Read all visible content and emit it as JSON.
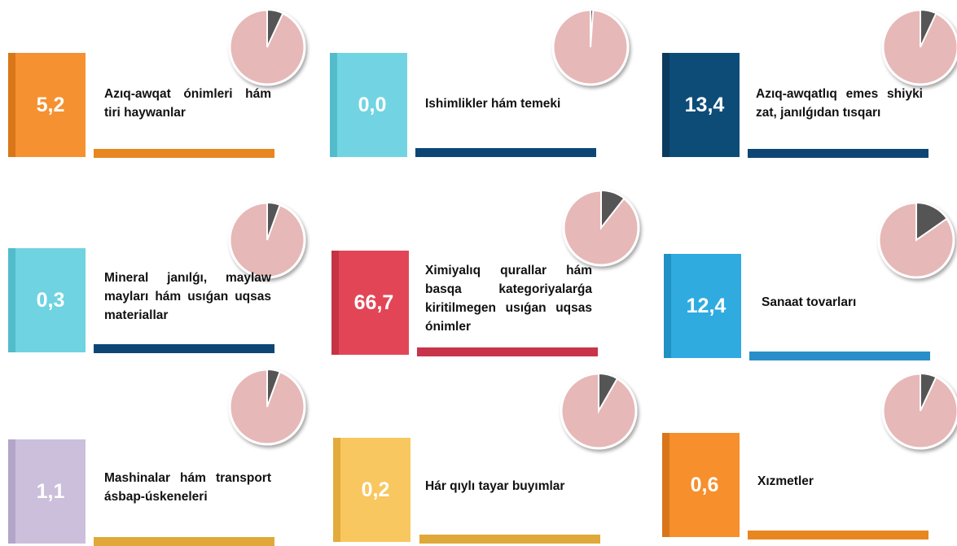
{
  "tiles": [
    {
      "value": "5,2",
      "label": "Azıq-awqat ónimleri hám tiri haywanlar"
    },
    {
      "value": "0,0",
      "label": "Ishimlikler hám temeki"
    },
    {
      "value": "13,4",
      "label": "Azıq-awqatlıq emes shiyki zat, janılǵıdan tısqarı"
    },
    {
      "value": "0,3",
      "label": "Mineral janılǵı, maylaw mayları hám usıǵan uqsas materiallar"
    },
    {
      "value": "66,7",
      "label": "Ximiyalıq qurallar hám basqa kategoriyalarǵa kiritilmegen usıǵan uqsas ónimler"
    },
    {
      "value": "12,4",
      "label": "Sanaat tovarları"
    },
    {
      "value": "1,1",
      "label": "Mashinalar hám transport ásbap-úskeneleri"
    },
    {
      "value": "0,2",
      "label": "Hár qıylı tayar buyımlar"
    },
    {
      "value": "0,6",
      "label": "Xızmetler"
    }
  ]
}
